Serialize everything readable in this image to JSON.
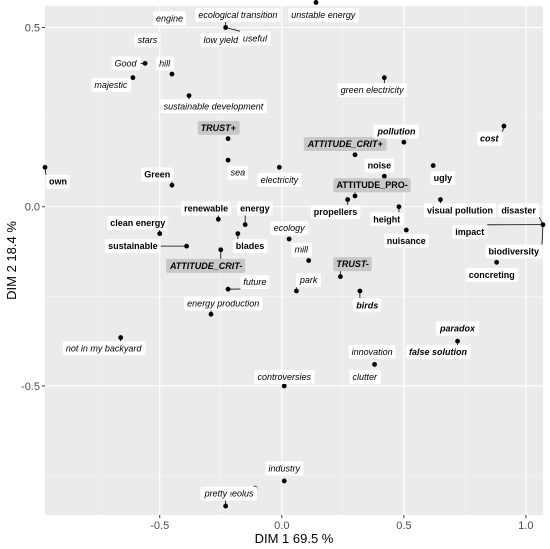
{
  "chart_data": {
    "type": "scatter",
    "xlabel": "DIM 1   69.5 %",
    "ylabel": "DIM 2   18.4 %",
    "xlim": [
      -0.97,
      1.07
    ],
    "ylim": [
      -0.86,
      0.56
    ],
    "xticks": [
      -0.5,
      0.0,
      0.5,
      1.0
    ],
    "yticks": [
      -0.5,
      0.0,
      0.5
    ],
    "xtick_labels": [
      "-0.5",
      "0.0",
      "0.5",
      "1.0"
    ],
    "ytick_labels": [
      "-0.5",
      "0.0",
      "0.5"
    ],
    "grid": true,
    "background": "#ebebeb",
    "points": [
      {
        "name": "engine",
        "x": -0.5,
        "y": 0.525,
        "lx": -0.46,
        "ly": 0.525,
        "style": "italic",
        "box": "white"
      },
      {
        "name": "stars",
        "x": -0.55,
        "y": 0.465,
        "lx": -0.55,
        "ly": 0.465,
        "style": "italic",
        "box": "white"
      },
      {
        "name": "Good",
        "x": -0.56,
        "y": 0.4,
        "lx": -0.64,
        "ly": 0.4,
        "style": "italic",
        "box": "white"
      },
      {
        "name": "majestic",
        "x": -0.61,
        "y": 0.36,
        "lx": -0.7,
        "ly": 0.34,
        "style": "italic",
        "box": "white"
      },
      {
        "name": "hill",
        "x": -0.45,
        "y": 0.37,
        "lx": -0.48,
        "ly": 0.4,
        "style": "italic",
        "box": "white"
      },
      {
        "name": "sustainable development",
        "x": -0.38,
        "y": 0.31,
        "lx": -0.28,
        "ly": 0.28,
        "style": "italic",
        "box": "white"
      },
      {
        "name": "ecological transition",
        "x": -0.23,
        "y": 0.5,
        "lx": -0.18,
        "ly": 0.535,
        "style": "italic",
        "box": "white"
      },
      {
        "name": "low yield",
        "x": -0.23,
        "y": 0.5,
        "lx": -0.25,
        "ly": 0.465,
        "style": "italic",
        "box": "white"
      },
      {
        "name": "useful",
        "x": -0.23,
        "y": 0.5,
        "lx": -0.11,
        "ly": 0.47,
        "style": "italic",
        "box": "white"
      },
      {
        "name": "unstable energy",
        "x": 0.14,
        "y": 0.57,
        "lx": 0.17,
        "ly": 0.535,
        "style": "italic",
        "box": "white"
      },
      {
        "name": "green electricity",
        "x": 0.42,
        "y": 0.36,
        "lx": 0.37,
        "ly": 0.325,
        "style": "italic",
        "box": "white"
      },
      {
        "name": "TRUST+",
        "x": -0.22,
        "y": 0.19,
        "lx": -0.26,
        "ly": 0.22,
        "style": "bold-italic",
        "box": "gray"
      },
      {
        "name": "sea",
        "x": -0.22,
        "y": 0.13,
        "lx": -0.18,
        "ly": 0.095,
        "style": "italic",
        "box": "white"
      },
      {
        "name": "electricity",
        "x": -0.01,
        "y": 0.11,
        "lx": -0.01,
        "ly": 0.075,
        "style": "italic",
        "box": "white"
      },
      {
        "name": "ATTITUDE_CRIT+",
        "x": 0.3,
        "y": 0.145,
        "lx": 0.26,
        "ly": 0.175,
        "style": "bold-italic",
        "box": "gray"
      },
      {
        "name": "pollution",
        "x": 0.5,
        "y": 0.18,
        "lx": 0.47,
        "ly": 0.21,
        "style": "bold-italic",
        "box": "white"
      },
      {
        "name": "cost",
        "x": 0.91,
        "y": 0.225,
        "lx": 0.85,
        "ly": 0.19,
        "style": "bold-italic",
        "box": "white"
      },
      {
        "name": "noise",
        "x": 0.42,
        "y": 0.085,
        "lx": 0.4,
        "ly": 0.115,
        "style": "bold",
        "box": "white"
      },
      {
        "name": "ugly",
        "x": 0.62,
        "y": 0.115,
        "lx": 0.66,
        "ly": 0.08,
        "style": "bold",
        "box": "white"
      },
      {
        "name": "ATTITUDE_PRO-",
        "x": 0.3,
        "y": 0.03,
        "lx": 0.37,
        "ly": 0.06,
        "style": "bold",
        "box": "gray"
      },
      {
        "name": "Green",
        "x": -0.45,
        "y": 0.06,
        "lx": -0.51,
        "ly": 0.09,
        "style": "bold",
        "box": "white"
      },
      {
        "name": "own",
        "x": -0.97,
        "y": 0.11,
        "lx": -0.93,
        "ly": 0.07,
        "style": "bold",
        "box": "white"
      },
      {
        "name": "propellers",
        "x": 0.27,
        "y": 0.02,
        "lx": 0.22,
        "ly": -0.015,
        "style": "bold",
        "box": "white"
      },
      {
        "name": "visual pollution",
        "x": 0.65,
        "y": 0.02,
        "lx": 0.73,
        "ly": -0.01,
        "style": "bold",
        "box": "white"
      },
      {
        "name": "disaster",
        "x": 1.07,
        "y": -0.05,
        "lx": 0.97,
        "ly": -0.01,
        "style": "bold",
        "box": "white"
      },
      {
        "name": "height",
        "x": 0.48,
        "y": 0.0,
        "lx": 0.43,
        "ly": -0.035,
        "style": "bold",
        "box": "white"
      },
      {
        "name": "impact",
        "x": 1.07,
        "y": -0.05,
        "lx": 0.77,
        "ly": -0.07,
        "style": "bold",
        "box": "white"
      },
      {
        "name": "biodiversity",
        "x": 1.07,
        "y": -0.05,
        "lx": 0.96,
        "ly": -0.125,
        "style": "bold",
        "box": "white"
      },
      {
        "name": "nuisance",
        "x": 0.51,
        "y": -0.065,
        "lx": 0.51,
        "ly": -0.095,
        "style": "bold",
        "box": "white"
      },
      {
        "name": "concreting",
        "x": 0.88,
        "y": -0.155,
        "lx": 0.86,
        "ly": -0.19,
        "style": "bold",
        "box": "white"
      },
      {
        "name": "renewable",
        "x": -0.26,
        "y": -0.035,
        "lx": -0.31,
        "ly": -0.005,
        "style": "bold",
        "box": "white"
      },
      {
        "name": "energy",
        "x": -0.15,
        "y": -0.05,
        "lx": -0.11,
        "ly": -0.005,
        "style": "bold",
        "box": "white"
      },
      {
        "name": "clean energy",
        "x": -0.5,
        "y": -0.075,
        "lx": -0.59,
        "ly": -0.045,
        "style": "bold",
        "box": "white"
      },
      {
        "name": "sustainable",
        "x": -0.39,
        "y": -0.11,
        "lx": -0.61,
        "ly": -0.11,
        "style": "bold",
        "box": "white"
      },
      {
        "name": "blades",
        "x": -0.18,
        "y": -0.075,
        "lx": -0.13,
        "ly": -0.11,
        "style": "bold",
        "box": "white"
      },
      {
        "name": "ATTITUDE_CRIT-",
        "x": -0.25,
        "y": -0.12,
        "lx": -0.31,
        "ly": -0.165,
        "style": "bold-italic",
        "box": "gray"
      },
      {
        "name": "ecology",
        "x": 0.03,
        "y": -0.09,
        "lx": 0.03,
        "ly": -0.06,
        "style": "italic",
        "box": "white"
      },
      {
        "name": "mill",
        "x": 0.11,
        "y": -0.15,
        "lx": 0.08,
        "ly": -0.12,
        "style": "italic",
        "box": "white"
      },
      {
        "name": "TRUST-",
        "x": 0.24,
        "y": -0.195,
        "lx": 0.29,
        "ly": -0.16,
        "style": "bold-italic",
        "box": "gray"
      },
      {
        "name": "future",
        "x": -0.22,
        "y": -0.23,
        "lx": -0.11,
        "ly": -0.21,
        "style": "italic",
        "box": "white"
      },
      {
        "name": "park",
        "x": 0.06,
        "y": -0.235,
        "lx": 0.11,
        "ly": -0.205,
        "style": "italic",
        "box": "white"
      },
      {
        "name": "birds",
        "x": 0.32,
        "y": -0.235,
        "lx": 0.35,
        "ly": -0.275,
        "style": "bold-italic",
        "box": "white"
      },
      {
        "name": "energy production",
        "x": -0.29,
        "y": -0.3,
        "lx": -0.24,
        "ly": -0.27,
        "style": "italic",
        "box": "white"
      },
      {
        "name": "paradox",
        "x": 0.72,
        "y": -0.375,
        "lx": 0.72,
        "ly": -0.34,
        "style": "bold-italic",
        "box": "white"
      },
      {
        "name": "false solution",
        "x": 0.72,
        "y": -0.375,
        "lx": 0.64,
        "ly": -0.405,
        "style": "bold-italic",
        "box": "white"
      },
      {
        "name": "not in my backyard",
        "x": -0.66,
        "y": -0.365,
        "lx": -0.73,
        "ly": -0.395,
        "style": "italic",
        "box": "white"
      },
      {
        "name": "innovation",
        "x": 0.38,
        "y": -0.44,
        "lx": 0.37,
        "ly": -0.405,
        "style": "italic",
        "box": "white"
      },
      {
        "name": "clutter",
        "x": 0.38,
        "y": -0.44,
        "lx": 0.34,
        "ly": -0.475,
        "style": "italic",
        "box": "white"
      },
      {
        "name": "controversies",
        "x": 0.01,
        "y": -0.5,
        "lx": 0.01,
        "ly": -0.475,
        "style": "italic",
        "box": "white"
      },
      {
        "name": "industry",
        "x": 0.01,
        "y": -0.765,
        "lx": 0.01,
        "ly": -0.73,
        "style": "italic",
        "box": "white"
      },
      {
        "name": "aeolus",
        "x": -0.11,
        "y": -0.785,
        "lx": -0.17,
        "ly": -0.8,
        "style": "italic",
        "box": "white"
      },
      {
        "name": "pretty",
        "x": -0.23,
        "y": -0.835,
        "lx": -0.27,
        "ly": -0.8,
        "style": "italic",
        "box": "white"
      }
    ]
  }
}
